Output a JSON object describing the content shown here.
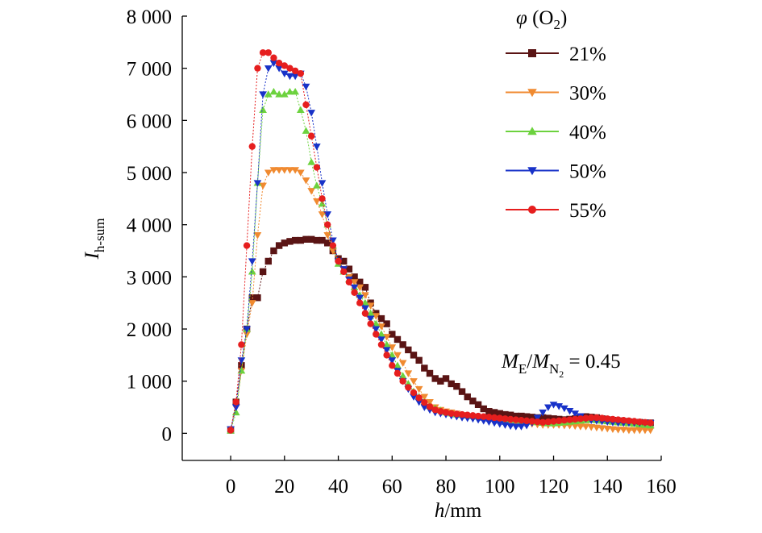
{
  "chart_data": {
    "type": "line",
    "xlabel": {
      "var": "h",
      "unit": "/mm"
    },
    "ylabel": {
      "var": "I",
      "sub": "h-sum"
    },
    "xlim": [
      -18,
      160
    ],
    "ylim": [
      -520,
      8000
    ],
    "x_ticks": [
      "0",
      "20",
      "40",
      "60",
      "80",
      "100",
      "120",
      "140",
      "160"
    ],
    "y_ticks": [
      "0",
      "1 000",
      "2 000",
      "3 000",
      "4 000",
      "5 000",
      "6 000",
      "7 000",
      "8 000"
    ],
    "grid": false,
    "legend": {
      "placement": "top-right",
      "title": {
        "var": "φ",
        "open": " (O",
        "sub": "2",
        "close": ")"
      }
    },
    "annotation": {
      "m": "M",
      "e": "E",
      "slash": "/",
      "n": "N",
      "n_sub": "2",
      "rest": " = 0.45"
    },
    "x": [
      0,
      2,
      4,
      6,
      8,
      10,
      12,
      14,
      16,
      18,
      20,
      22,
      24,
      26,
      28,
      30,
      32,
      34,
      36,
      38,
      40,
      42,
      44,
      46,
      48,
      50,
      52,
      54,
      56,
      58,
      60,
      62,
      64,
      66,
      68,
      70,
      72,
      74,
      76,
      78,
      80,
      82,
      84,
      86,
      88,
      90,
      92,
      94,
      96,
      98,
      100,
      102,
      104,
      106,
      108,
      110,
      112,
      114,
      116,
      118,
      120,
      122,
      124,
      126,
      128,
      130,
      132,
      134,
      136,
      138,
      140,
      142,
      144,
      146,
      148,
      150,
      152,
      154,
      156
    ],
    "series": [
      {
        "name": "21%",
        "color": "#5a1414",
        "marker": "square",
        "values": [
          60,
          600,
          1300,
          2000,
          2600,
          2600,
          3100,
          3300,
          3500,
          3600,
          3650,
          3680,
          3700,
          3700,
          3720,
          3720,
          3700,
          3700,
          3650,
          3500,
          3350,
          3300,
          3150,
          3000,
          2900,
          2800,
          2500,
          2300,
          2200,
          2100,
          1900,
          1800,
          1700,
          1600,
          1500,
          1400,
          1250,
          1150,
          1050,
          1000,
          1050,
          950,
          900,
          800,
          700,
          620,
          550,
          470,
          420,
          400,
          380,
          360,
          350,
          330,
          330,
          320,
          310,
          300,
          300,
          290,
          280,
          270,
          260,
          270,
          280,
          300,
          320,
          310,
          300,
          280,
          260,
          250,
          240,
          230,
          220,
          210,
          210,
          200,
          200
        ]
      },
      {
        "name": "30%",
        "color": "#f08a30",
        "marker": "triangle-down",
        "values": [
          80,
          500,
          1200,
          1900,
          2500,
          3800,
          4750,
          5000,
          5050,
          5050,
          5050,
          5050,
          5050,
          5000,
          4850,
          4650,
          4450,
          4200,
          3800,
          3500,
          3300,
          3150,
          3000,
          2900,
          2800,
          2650,
          2450,
          2250,
          2050,
          1850,
          1650,
          1500,
          1350,
          1150,
          1000,
          850,
          700,
          600,
          500,
          450,
          420,
          400,
          380,
          350,
          330,
          320,
          300,
          280,
          260,
          250,
          240,
          230,
          220,
          210,
          200,
          190,
          180,
          170,
          160,
          160,
          160,
          160,
          150,
          150,
          140,
          130,
          130,
          120,
          110,
          100,
          90,
          80,
          70,
          70,
          60,
          60,
          60,
          60,
          60
        ]
      },
      {
        "name": "40%",
        "color": "#6cd23e",
        "marker": "triangle-up",
        "values": [
          50,
          400,
          1200,
          2000,
          3100,
          4800,
          6200,
          6500,
          6550,
          6500,
          6500,
          6550,
          6550,
          6200,
          5800,
          5200,
          4750,
          4400,
          4000,
          3600,
          3250,
          3100,
          2950,
          2800,
          2650,
          2500,
          2300,
          2100,
          1900,
          1700,
          1500,
          1300,
          1100,
          950,
          800,
          700,
          600,
          520,
          480,
          440,
          400,
          380,
          360,
          350,
          340,
          330,
          320,
          310,
          300,
          290,
          280,
          270,
          260,
          250,
          240,
          230,
          220,
          210,
          200,
          190,
          190,
          200,
          210,
          220,
          230,
          240,
          250,
          260,
          250,
          240,
          230,
          220,
          210,
          200,
          190,
          180,
          170,
          160,
          150
        ]
      },
      {
        "name": "50%",
        "color": "#1832c8",
        "marker": "triangle-down",
        "values": [
          80,
          500,
          1400,
          2000,
          3300,
          4800,
          6500,
          7000,
          7100,
          7000,
          6900,
          6850,
          6850,
          6900,
          6650,
          6150,
          5500,
          4800,
          4200,
          3700,
          3300,
          3150,
          2950,
          2800,
          2600,
          2400,
          2200,
          2000,
          1800,
          1600,
          1400,
          1200,
          1000,
          850,
          700,
          600,
          500,
          450,
          400,
          380,
          360,
          340,
          320,
          300,
          290,
          280,
          260,
          240,
          220,
          200,
          180,
          160,
          140,
          130,
          130,
          150,
          200,
          300,
          400,
          500,
          550,
          520,
          480,
          430,
          380,
          330,
          280,
          250,
          240,
          230,
          220,
          210,
          200,
          200,
          200,
          200,
          200,
          200,
          200
        ]
      },
      {
        "name": "55%",
        "color": "#e61e1e",
        "marker": "circle",
        "values": [
          60,
          600,
          1700,
          3600,
          5500,
          7000,
          7300,
          7300,
          7200,
          7100,
          7050,
          7000,
          6950,
          6900,
          6300,
          5700,
          5100,
          4500,
          4000,
          3600,
          3300,
          3100,
          2900,
          2700,
          2500,
          2300,
          2100,
          1900,
          1700,
          1500,
          1300,
          1150,
          1000,
          880,
          780,
          680,
          590,
          510,
          450,
          420,
          400,
          380,
          370,
          360,
          350,
          340,
          330,
          320,
          310,
          300,
          290,
          280,
          270,
          260,
          250,
          240,
          230,
          220,
          210,
          220,
          230,
          240,
          250,
          260,
          270,
          280,
          290,
          300,
          300,
          290,
          280,
          270,
          260,
          250,
          240,
          230,
          220,
          210,
          200
        ]
      }
    ]
  }
}
